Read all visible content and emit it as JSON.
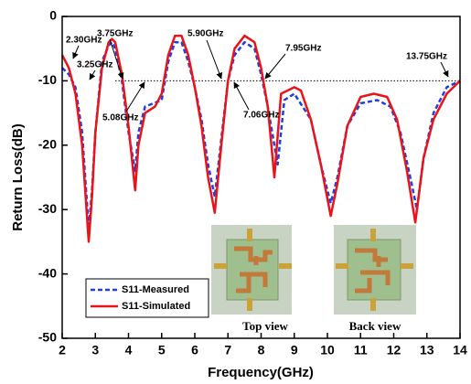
{
  "chart_data": {
    "type": "line",
    "xlabel": "Frequency(GHz)",
    "ylabel": "Return Loss(dB)",
    "xlim": [
      2,
      14
    ],
    "xticks": [
      2,
      3,
      4,
      5,
      6,
      7,
      8,
      9,
      10,
      11,
      12,
      13,
      14
    ],
    "ylim": [
      -50,
      0
    ],
    "yticks": [
      0,
      -10,
      -20,
      -30,
      -40,
      -50
    ],
    "reference_line": -10,
    "series": [
      {
        "name": "S11-Measured",
        "color": "#1f3fe0",
        "style": "dashed",
        "x": [
          2.0,
          2.2,
          2.4,
          2.6,
          2.8,
          2.9,
          3.0,
          3.2,
          3.4,
          3.5,
          3.6,
          3.8,
          4.0,
          4.2,
          4.3,
          4.5,
          5.0,
          5.2,
          5.4,
          5.6,
          5.8,
          6.0,
          6.2,
          6.4,
          6.6,
          6.8,
          7.0,
          7.2,
          7.5,
          7.8,
          8.0,
          8.2,
          8.5,
          8.7,
          9.0,
          9.5,
          9.8,
          10.1,
          10.3,
          10.6,
          11.0,
          11.5,
          11.9,
          12.2,
          12.5,
          12.7,
          12.9,
          13.2,
          13.6,
          14.0
        ],
        "values": [
          -8,
          -9,
          -11,
          -18,
          -33,
          -27,
          -18,
          -7,
          -4.5,
          -4,
          -5,
          -10,
          -18,
          -24,
          -18,
          -14,
          -13,
          -7,
          -4,
          -4,
          -7,
          -11,
          -16,
          -23,
          -28,
          -19,
          -10,
          -6,
          -4,
          -5,
          -9,
          -14,
          -23,
          -13,
          -12,
          -16,
          -23,
          -29,
          -25,
          -17,
          -13.5,
          -13,
          -14,
          -18,
          -25,
          -30,
          -22,
          -15,
          -11,
          -10
        ]
      },
      {
        "name": "S11-Simulated",
        "color": "#e8141a",
        "style": "solid",
        "x": [
          2.0,
          2.2,
          2.4,
          2.6,
          2.8,
          2.9,
          3.0,
          3.2,
          3.4,
          3.5,
          3.6,
          3.8,
          4.0,
          4.2,
          4.3,
          4.5,
          4.8,
          5.0,
          5.2,
          5.4,
          5.6,
          5.8,
          6.0,
          6.2,
          6.4,
          6.6,
          6.8,
          7.0,
          7.2,
          7.5,
          7.8,
          8.0,
          8.2,
          8.4,
          8.6,
          8.8,
          9.0,
          9.2,
          9.5,
          9.8,
          10.1,
          10.3,
          10.6,
          11.0,
          11.4,
          11.8,
          12.1,
          12.4,
          12.65,
          12.9,
          13.2,
          13.6,
          14.0
        ],
        "values": [
          -6,
          -8,
          -12,
          -20,
          -35,
          -28,
          -18,
          -8,
          -4,
          -3.5,
          -4,
          -9,
          -17,
          -27,
          -20,
          -15,
          -14,
          -12,
          -6,
          -3,
          -3,
          -6,
          -11,
          -17,
          -25,
          -30.5,
          -20,
          -10,
          -5,
          -3,
          -4,
          -8,
          -14,
          -25,
          -12,
          -11.5,
          -11,
          -11.5,
          -16,
          -23,
          -31,
          -26,
          -17,
          -12.5,
          -12,
          -12.5,
          -16,
          -24,
          -32,
          -22,
          -16,
          -12,
          -10
        ]
      }
    ],
    "annotations": [
      "2.30GHz",
      "3.25GHz",
      "3.75GHz",
      "5.08GHz",
      "5.90GHz",
      "7.06GHz",
      "7.95GHz",
      "13.75GHz"
    ],
    "inset": {
      "labels": [
        "Top view",
        "Back view"
      ]
    }
  }
}
